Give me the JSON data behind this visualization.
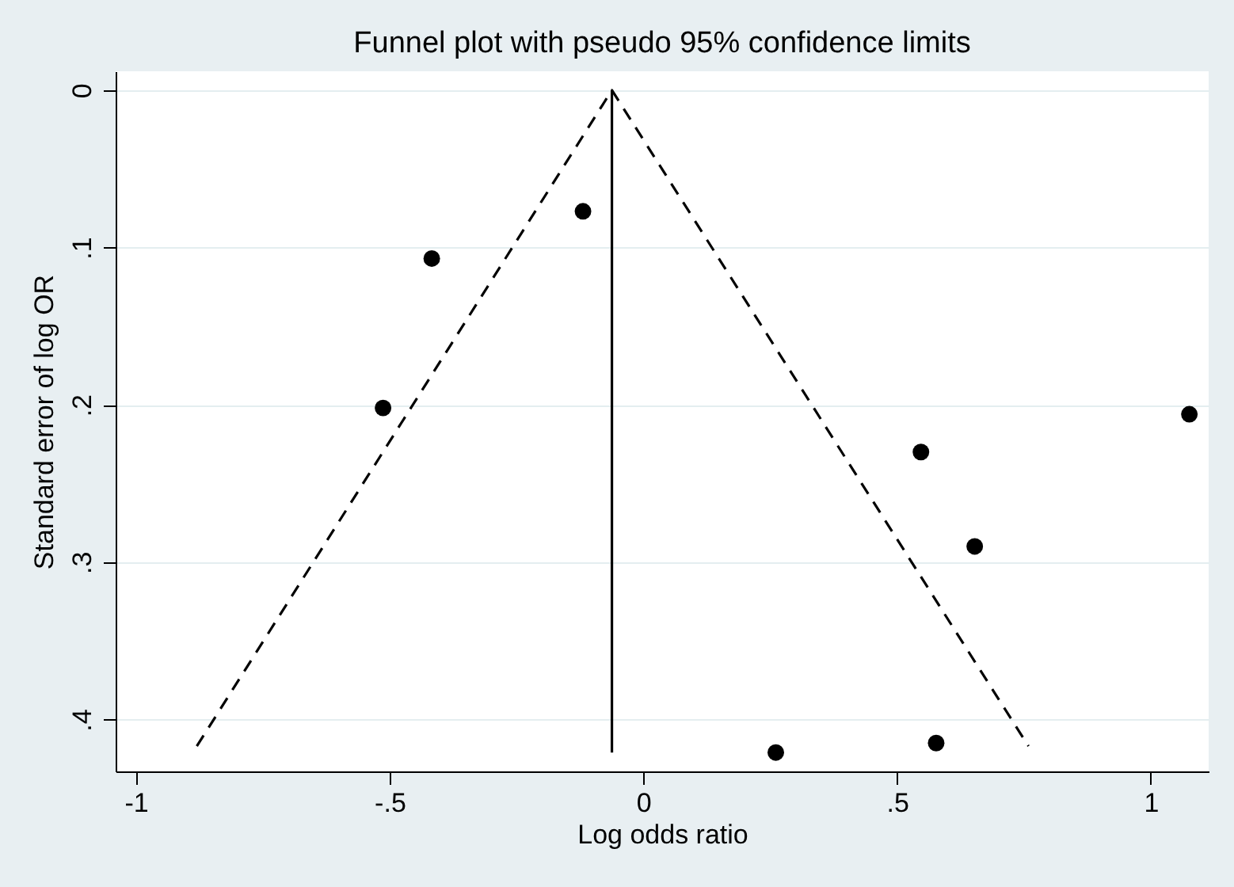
{
  "chart_data": {
    "type": "scatter",
    "title": "Funnel plot with pseudo 95% confidence limits",
    "xlabel": "Log odds ratio",
    "ylabel": "Standard error of log OR",
    "xlim": [
      -1.04,
      1.114
    ],
    "ylim": [
      0.433,
      -0.012
    ],
    "xticks": [
      -1,
      {
        "value": -0.5,
        "label": "-.5"
      },
      0,
      {
        "value": 0.5,
        "label": ".5"
      },
      1
    ],
    "yticks": [
      0,
      {
        "value": 0.1,
        "label": ".1"
      },
      {
        "value": 0.2,
        "label": ".2"
      },
      {
        "value": 0.3,
        "label": ".3"
      },
      {
        "value": 0.4,
        "label": ".4"
      }
    ],
    "grid": "y",
    "series": [
      {
        "color": "#000000",
        "marker": "circle",
        "x": [
          -0.417,
          -0.119,
          -0.513,
          1.076,
          0.547,
          0.653,
          0.577,
          0.261
        ],
        "values": [
          0.107,
          0.077,
          0.202,
          0.206,
          0.23,
          0.29,
          0.415,
          0.421
        ]
      },
      {
        "type": "line",
        "color": "#000000",
        "line_style": "dashed",
        "x": [
          -0.88,
          -0.062,
          0.759
        ],
        "values": [
          0.417,
          0,
          0.417
        ]
      },
      {
        "type": "line",
        "color": "#000000",
        "line_style": "solid",
        "x": [
          -0.062,
          -0.062
        ],
        "values": [
          0,
          0.421
        ]
      }
    ]
  }
}
